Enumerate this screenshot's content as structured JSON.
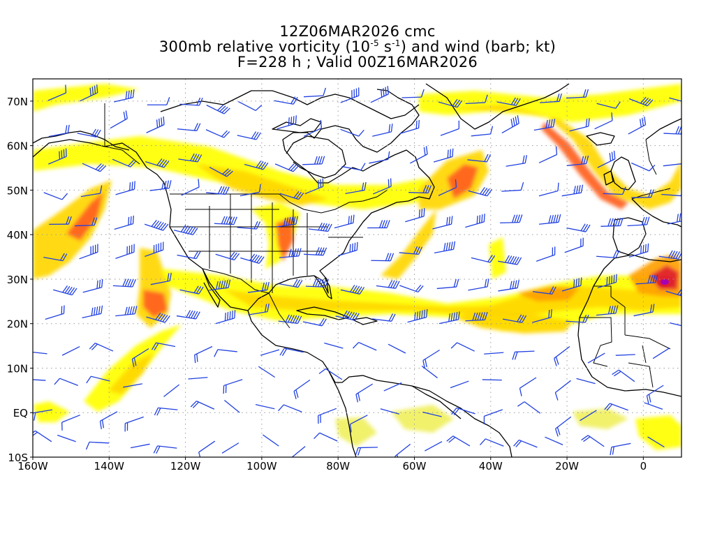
{
  "title": {
    "line1": "12Z06MAR2026 cmc",
    "line2_a": "300mb relative vorticity (10",
    "line2_exp1": "-5",
    "line2_b": " s",
    "line2_exp2": "-1",
    "line2_c": ") and wind (barb; kt)",
    "line3": "F=228 h ; Valid 00Z16MAR2026"
  },
  "axes": {
    "x_ticks": [
      {
        "label": "160W",
        "lon": -160
      },
      {
        "label": "140W",
        "lon": -140
      },
      {
        "label": "120W",
        "lon": -120
      },
      {
        "label": "100W",
        "lon": -100
      },
      {
        "label": "80W",
        "lon": -80
      },
      {
        "label": "60W",
        "lon": -60
      },
      {
        "label": "40W",
        "lon": -40
      },
      {
        "label": "20W",
        "lon": -20
      },
      {
        "label": "0",
        "lon": 0
      }
    ],
    "y_ticks": [
      {
        "label": "70N",
        "lat": 70
      },
      {
        "label": "60N",
        "lat": 60
      },
      {
        "label": "50N",
        "lat": 50
      },
      {
        "label": "40N",
        "lat": 40
      },
      {
        "label": "30N",
        "lat": 30
      },
      {
        "label": "20N",
        "lat": 20
      },
      {
        "label": "10N",
        "lat": 10
      },
      {
        "label": "EQ",
        "lat": 0
      },
      {
        "label": "10S",
        "lat": -10
      }
    ],
    "lon_range": [
      -160,
      10
    ],
    "lat_range": [
      -10,
      75
    ],
    "grid": "dotted"
  },
  "colors": {
    "shade_light": "#ffff00",
    "shade_pale": "#f0f060",
    "shade_yellow_orange": "#ffd700",
    "shade_orange": "#ffa000",
    "shade_red_orange": "#ff6020",
    "shade_red": "#e02030",
    "shade_max": "#a000c0",
    "barb": "#2040e0",
    "coast": "#000000",
    "grid": "#999999"
  }
}
